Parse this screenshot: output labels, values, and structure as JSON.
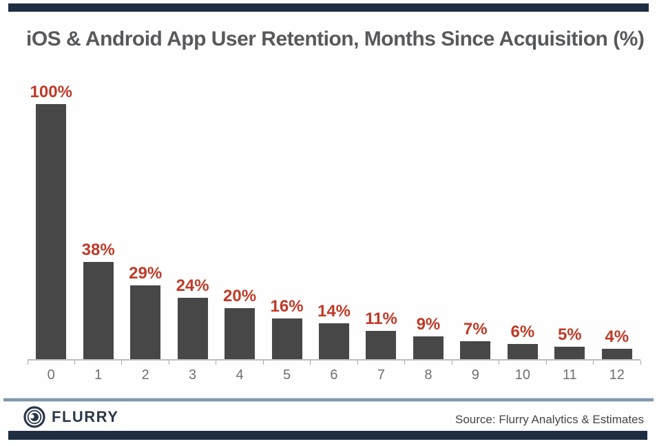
{
  "title": "iOS & Android App User Retention, Months Since Acquisition (%)",
  "chart_data": {
    "type": "bar",
    "title": "iOS & Android App User Retention, Months Since Acquisition (%)",
    "categories": [
      "0",
      "1",
      "2",
      "3",
      "4",
      "5",
      "6",
      "7",
      "8",
      "9",
      "10",
      "11",
      "12"
    ],
    "values": [
      100,
      38,
      29,
      24,
      20,
      16,
      14,
      11,
      9,
      7,
      6,
      5,
      4
    ],
    "value_labels": [
      "100%",
      "38%",
      "29%",
      "24%",
      "20%",
      "16%",
      "14%",
      "11%",
      "9%",
      "7%",
      "6%",
      "5%",
      "4%"
    ],
    "xlabel": "",
    "ylabel": "",
    "ylim": [
      0,
      100
    ],
    "grid": false,
    "legend": "none",
    "bar_color": "#474747",
    "value_label_color": "#c03a27",
    "x_tick_color": "#6e6f71"
  },
  "footer": {
    "logo_text": "FLURRY",
    "source": "Source: Flurry Analytics & Estimates"
  },
  "colors": {
    "navy": "#1f2d42",
    "bar_gray": "#474747",
    "label_red": "#c03a27",
    "title_gray": "#58595b",
    "logo_navy": "#2a3747"
  }
}
